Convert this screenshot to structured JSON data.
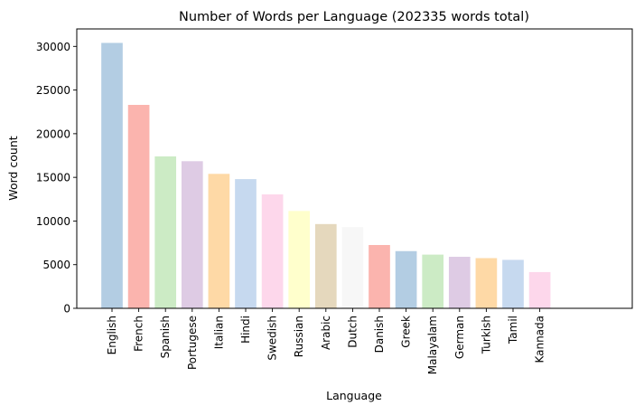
{
  "chart_data": {
    "type": "bar",
    "title": "Number of Words per Language (202335 words total)",
    "xlabel": "Language",
    "ylabel": "Word count",
    "ylim": [
      0,
      32000
    ],
    "yticks": [
      0,
      5000,
      10000,
      15000,
      20000,
      25000,
      30000
    ],
    "grid": false,
    "categories": [
      "English",
      "French",
      "Spanish",
      "Portugese",
      "Italian",
      "Hindi",
      "Swedish",
      "Russian",
      "Arabic",
      "Dutch",
      "Danish",
      "Greek",
      "Malayalam",
      "German",
      "Turkish",
      "Tamil",
      "Kannada"
    ],
    "values": [
      30400,
      23300,
      17400,
      16850,
      15400,
      14800,
      13050,
      11150,
      9650,
      9300,
      7250,
      6550,
      6150,
      5900,
      5750,
      5550,
      4150
    ],
    "colors": [
      "#b3cde3",
      "#fbb4ae",
      "#ccebc5",
      "#decbe4",
      "#fed9a6",
      "#c6d9ef",
      "#fdd7eb",
      "#ffffcc",
      "#e5d8bd",
      "#f7f7f7",
      "#fbb4ae",
      "#b3cde3",
      "#ccebc5",
      "#decbe4",
      "#fed9a6",
      "#c6d9ef",
      "#fdd7eb"
    ]
  }
}
